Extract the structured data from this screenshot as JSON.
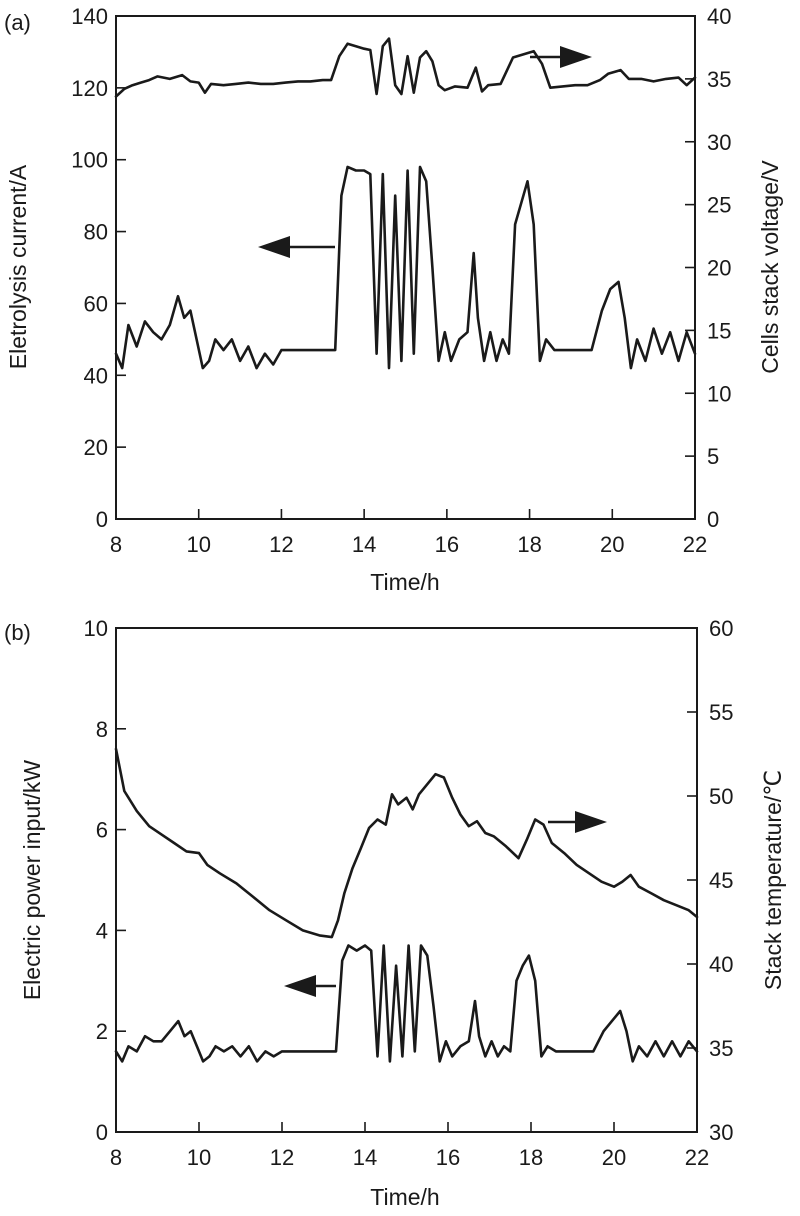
{
  "chart_data": [
    {
      "panel_label": "(a)",
      "type": "line",
      "xlabel": "Time/h",
      "ylabel_left": "Eletrolysis current/A",
      "ylabel_right": "Cells stack voltage/V",
      "xlim": [
        8,
        22
      ],
      "ylim_left": [
        0,
        140
      ],
      "ylim_right": [
        0,
        40
      ],
      "xticks": [
        "8",
        "10",
        "12",
        "14",
        "16",
        "18",
        "20",
        "22"
      ],
      "yticks_left": [
        "0",
        "20",
        "40",
        "60",
        "80",
        "100",
        "120",
        "140"
      ],
      "yticks_right": [
        "0",
        "5",
        "10",
        "15",
        "20",
        "25",
        "30",
        "35",
        "40"
      ],
      "grid": false,
      "series": [
        {
          "axis": "left",
          "x": [
            8.0,
            8.15,
            8.3,
            8.5,
            8.7,
            8.9,
            9.1,
            9.3,
            9.5,
            9.65,
            9.8,
            9.95,
            10.1,
            10.25,
            10.4,
            10.6,
            10.8,
            11.0,
            11.2,
            11.4,
            11.6,
            11.8,
            12.0,
            12.2,
            12.5,
            12.8,
            13.1,
            13.3,
            13.45,
            13.6,
            13.8,
            14.0,
            14.15,
            14.3,
            14.45,
            14.6,
            14.75,
            14.9,
            15.05,
            15.2,
            15.35,
            15.5,
            15.65,
            15.8,
            15.95,
            16.1,
            16.3,
            16.5,
            16.65,
            16.75,
            16.9,
            17.05,
            17.2,
            17.35,
            17.5,
            17.65,
            17.8,
            17.95,
            18.1,
            18.25,
            18.4,
            18.6,
            18.8,
            19.0,
            19.2,
            19.5,
            19.75,
            19.95,
            20.15,
            20.3,
            20.45,
            20.6,
            20.8,
            21.0,
            21.2,
            21.4,
            21.6,
            21.8,
            22.0
          ],
          "values": [
            46,
            42,
            54,
            48,
            55,
            52,
            50,
            54,
            62,
            56,
            58,
            50,
            42,
            44,
            50,
            47,
            50,
            44,
            48,
            42,
            46,
            43,
            47,
            47,
            47,
            47,
            47,
            47,
            90,
            98,
            97,
            97,
            96,
            46,
            96,
            42,
            90,
            44,
            97,
            46,
            98,
            94,
            70,
            44,
            52,
            44,
            50,
            52,
            74,
            56,
            44,
            52,
            44,
            50,
            46,
            82,
            88,
            94,
            82,
            44,
            50,
            47,
            47,
            47,
            47,
            47,
            58,
            64,
            66,
            56,
            42,
            50,
            44,
            53,
            46,
            52,
            44,
            52,
            46
          ]
        },
        {
          "axis": "right",
          "x": [
            8.0,
            8.2,
            8.4,
            8.6,
            8.8,
            9.0,
            9.3,
            9.6,
            9.8,
            10.0,
            10.15,
            10.3,
            10.6,
            10.9,
            11.2,
            11.5,
            11.8,
            12.1,
            12.4,
            12.7,
            13.0,
            13.2,
            13.4,
            13.6,
            13.8,
            14.0,
            14.15,
            14.3,
            14.45,
            14.6,
            14.75,
            14.9,
            15.05,
            15.2,
            15.35,
            15.5,
            15.65,
            15.8,
            15.95,
            16.2,
            16.5,
            16.7,
            16.85,
            17.0,
            17.3,
            17.6,
            17.9,
            18.1,
            18.3,
            18.5,
            18.8,
            19.1,
            19.4,
            19.7,
            19.9,
            20.2,
            20.4,
            20.7,
            21.0,
            21.3,
            21.6,
            21.8,
            22.0
          ],
          "values": [
            33.6,
            34.2,
            34.5,
            34.7,
            34.9,
            35.2,
            35.0,
            35.3,
            34.8,
            34.7,
            33.9,
            34.6,
            34.5,
            34.6,
            34.7,
            34.6,
            34.6,
            34.7,
            34.8,
            34.8,
            34.9,
            34.9,
            36.8,
            37.8,
            37.6,
            37.4,
            37.3,
            33.8,
            37.6,
            38.2,
            34.5,
            33.8,
            36.8,
            33.9,
            36.7,
            37.2,
            36.4,
            34.5,
            34.1,
            34.4,
            34.3,
            35.9,
            34.0,
            34.5,
            34.6,
            36.7,
            37.0,
            37.2,
            36.2,
            34.3,
            34.4,
            34.5,
            34.5,
            34.9,
            35.4,
            35.7,
            35.0,
            35.0,
            34.8,
            35.0,
            35.1,
            34.5,
            35.1
          ]
        }
      ],
      "arrows": [
        {
          "direction": "left"
        },
        {
          "direction": "right"
        }
      ]
    },
    {
      "panel_label": "(b)",
      "type": "line",
      "xlabel": "Time/h",
      "ylabel_left": "Electric power input/kW",
      "ylabel_right": "Stack temperature/℃",
      "xlim": [
        8,
        22
      ],
      "ylim_left": [
        0,
        10
      ],
      "ylim_right": [
        30,
        60
      ],
      "xticks": [
        "8",
        "10",
        "12",
        "14",
        "16",
        "18",
        "20",
        "22"
      ],
      "yticks_left": [
        "0",
        "2",
        "4",
        "6",
        "8",
        "10"
      ],
      "yticks_right": [
        "30",
        "35",
        "40",
        "45",
        "50",
        "55",
        "60"
      ],
      "grid": false,
      "series": [
        {
          "axis": "left",
          "x": [
            8.0,
            8.15,
            8.3,
            8.5,
            8.7,
            8.9,
            9.1,
            9.3,
            9.5,
            9.65,
            9.8,
            9.95,
            10.1,
            10.25,
            10.4,
            10.6,
            10.8,
            11.0,
            11.2,
            11.4,
            11.6,
            11.8,
            12.0,
            12.2,
            12.5,
            12.8,
            13.1,
            13.3,
            13.45,
            13.6,
            13.8,
            14.0,
            14.15,
            14.3,
            14.45,
            14.6,
            14.75,
            14.9,
            15.05,
            15.2,
            15.35,
            15.5,
            15.65,
            15.8,
            15.95,
            16.1,
            16.3,
            16.5,
            16.65,
            16.75,
            16.9,
            17.05,
            17.2,
            17.35,
            17.5,
            17.65,
            17.8,
            17.95,
            18.1,
            18.25,
            18.4,
            18.6,
            18.8,
            19.0,
            19.2,
            19.5,
            19.75,
            19.95,
            20.15,
            20.3,
            20.45,
            20.6,
            20.8,
            21.0,
            21.2,
            21.4,
            21.6,
            21.8,
            22.0
          ],
          "values": [
            1.6,
            1.4,
            1.7,
            1.6,
            1.9,
            1.8,
            1.8,
            2.0,
            2.2,
            1.9,
            2.0,
            1.7,
            1.4,
            1.5,
            1.7,
            1.6,
            1.7,
            1.5,
            1.7,
            1.4,
            1.6,
            1.5,
            1.6,
            1.6,
            1.6,
            1.6,
            1.6,
            1.6,
            3.4,
            3.7,
            3.6,
            3.7,
            3.6,
            1.5,
            3.7,
            1.4,
            3.3,
            1.5,
            3.7,
            1.6,
            3.7,
            3.5,
            2.5,
            1.4,
            1.8,
            1.5,
            1.7,
            1.8,
            2.6,
            1.9,
            1.5,
            1.8,
            1.5,
            1.7,
            1.6,
            3.0,
            3.3,
            3.5,
            3.0,
            1.5,
            1.7,
            1.6,
            1.6,
            1.6,
            1.6,
            1.6,
            2.0,
            2.2,
            2.4,
            2.0,
            1.4,
            1.7,
            1.5,
            1.8,
            1.5,
            1.8,
            1.5,
            1.8,
            1.6
          ]
        },
        {
          "axis": "right",
          "x": [
            8.0,
            8.2,
            8.5,
            8.8,
            9.1,
            9.4,
            9.7,
            10.0,
            10.2,
            10.5,
            10.9,
            11.3,
            11.7,
            12.1,
            12.5,
            12.9,
            13.2,
            13.35,
            13.5,
            13.7,
            13.9,
            14.1,
            14.3,
            14.5,
            14.65,
            14.8,
            15.0,
            15.15,
            15.3,
            15.5,
            15.7,
            15.9,
            16.1,
            16.3,
            16.5,
            16.7,
            16.9,
            17.1,
            17.4,
            17.7,
            17.9,
            18.1,
            18.3,
            18.5,
            18.8,
            19.1,
            19.4,
            19.7,
            20.0,
            20.2,
            20.4,
            20.6,
            20.9,
            21.2,
            21.5,
            21.8,
            22.0
          ],
          "values": [
            52.8,
            50.3,
            49.1,
            48.2,
            47.7,
            47.2,
            46.7,
            46.6,
            45.9,
            45.4,
            44.8,
            44.0,
            43.2,
            42.6,
            42.0,
            41.7,
            41.6,
            42.6,
            44.2,
            45.7,
            46.9,
            48.1,
            48.6,
            48.3,
            50.1,
            49.5,
            49.9,
            49.2,
            50.1,
            50.7,
            51.3,
            51.1,
            49.9,
            48.9,
            48.2,
            48.5,
            47.8,
            47.6,
            47.0,
            46.3,
            47.4,
            48.6,
            48.3,
            47.2,
            46.6,
            45.9,
            45.4,
            44.9,
            44.6,
            44.9,
            45.3,
            44.6,
            44.2,
            43.8,
            43.5,
            43.2,
            42.8
          ]
        }
      ],
      "arrows": [
        {
          "direction": "left"
        },
        {
          "direction": "right"
        }
      ]
    }
  ]
}
